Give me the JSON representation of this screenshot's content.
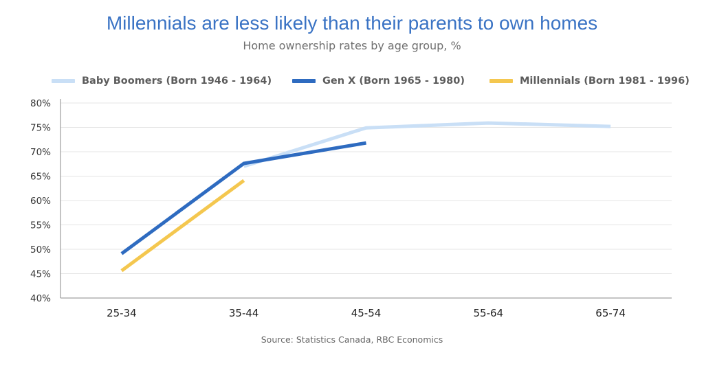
{
  "chart_data": {
    "type": "line",
    "title": "Millennials are less likely than their parents to own homes",
    "subtitle": "Home ownership rates by age group, %",
    "categories": [
      "25-34",
      "35-44",
      "45-54",
      "55-64",
      "65-74"
    ],
    "ylim": [
      40,
      80
    ],
    "yticks": [
      "40%",
      "45%",
      "50%",
      "55%",
      "60%",
      "65%",
      "70%",
      "75%",
      "80%"
    ],
    "grid": true,
    "legend_position": "top",
    "series": [
      {
        "name": "Baby Boomers (Born 1946 - 1964)",
        "color": "#c9dff6",
        "values": [
          null,
          67.0,
          74.9,
          75.9,
          75.2
        ]
      },
      {
        "name": "Gen X (Born 1965 - 1980)",
        "color": "#2e6bc0",
        "values": [
          49.1,
          67.6,
          71.8,
          null,
          null
        ]
      },
      {
        "name": "Millennials (Born 1981 - 1996)",
        "color": "#f4c74f",
        "values": [
          45.6,
          64.1,
          null,
          null,
          null
        ]
      }
    ],
    "source": "Source: Statistics Canada, RBC Economics"
  }
}
